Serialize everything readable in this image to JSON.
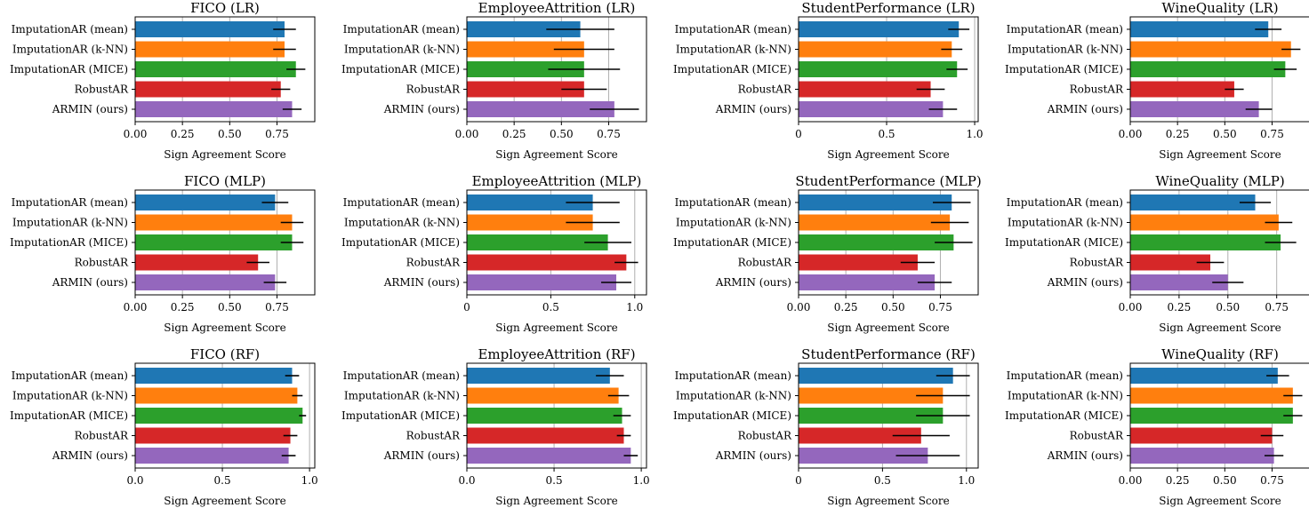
{
  "colors": [
    "#1f77b4",
    "#ff7f0e",
    "#2ca02c",
    "#d62728",
    "#9467bd"
  ],
  "chart_data": [
    {
      "type": "bar",
      "orientation": "horizontal",
      "title": "FICO (LR)",
      "xlabel": "Sign Agreement Score",
      "xticks": [
        0,
        0.25,
        0.5,
        0.75
      ],
      "xtick_labels": [
        "0.00",
        "0.25",
        "0.50",
        "0.75"
      ],
      "xlim": [
        0,
        0.95
      ],
      "grid": true,
      "categories": [
        "ImputationAR (mean)",
        "ImputationAR (k-NN)",
        "ImputationAR (MICE)",
        "RobustAR",
        "ARMIN (ours)"
      ],
      "values": [
        0.79,
        0.79,
        0.85,
        0.77,
        0.83
      ],
      "errors": [
        0.06,
        0.06,
        0.05,
        0.05,
        0.05
      ]
    },
    {
      "type": "bar",
      "orientation": "horizontal",
      "title": "EmployeeAttrition (LR)",
      "xlabel": "Sign Agreement Score",
      "xticks": [
        0,
        0.25,
        0.5,
        0.75
      ],
      "xtick_labels": [
        "0.00",
        "0.25",
        "0.50",
        "0.75"
      ],
      "xlim": [
        0,
        0.95
      ],
      "grid": true,
      "categories": [
        "ImputationAR (mean)",
        "ImputationAR (k-NN)",
        "ImputationAR (MICE)",
        "RobustAR",
        "ARMIN (ours)"
      ],
      "values": [
        0.6,
        0.62,
        0.62,
        0.62,
        0.78
      ],
      "errors": [
        0.18,
        0.16,
        0.19,
        0.12,
        0.13
      ]
    },
    {
      "type": "bar",
      "orientation": "horizontal",
      "title": "StudentPerformance (LR)",
      "xlabel": "Sign Agreement Score",
      "xticks": [
        0,
        0.5,
        1.0
      ],
      "xtick_labels": [
        "0",
        "0.5",
        "1.0"
      ],
      "xlim": [
        0,
        1.02
      ],
      "grid": true,
      "categories": [
        "ImputationAR (mean)",
        "ImputationAR (k-NN)",
        "ImputationAR (MICE)",
        "RobustAR",
        "ARMIN (ours)"
      ],
      "values": [
        0.91,
        0.87,
        0.9,
        0.75,
        0.82
      ],
      "errors": [
        0.06,
        0.06,
        0.06,
        0.08,
        0.08
      ]
    },
    {
      "type": "bar",
      "orientation": "horizontal",
      "title": "WineQuality (LR)",
      "xlabel": "Sign Agreement Score",
      "xticks": [
        0,
        0.25,
        0.5,
        0.75
      ],
      "xtick_labels": [
        "0.00",
        "0.25",
        "0.50",
        "0.75"
      ],
      "xlim": [
        0,
        0.95
      ],
      "grid": true,
      "categories": [
        "ImputationAR (mean)",
        "ImputationAR (k-NN)",
        "ImputationAR (MICE)",
        "RobustAR",
        "ARMIN (ours)"
      ],
      "values": [
        0.73,
        0.85,
        0.82,
        0.55,
        0.68
      ],
      "errors": [
        0.07,
        0.05,
        0.06,
        0.05,
        0.07
      ]
    },
    {
      "type": "bar",
      "orientation": "horizontal",
      "title": "FICO (MLP)",
      "xlabel": "Sign Agreement Score",
      "xticks": [
        0,
        0.25,
        0.5,
        0.75
      ],
      "xtick_labels": [
        "0.00",
        "0.25",
        "0.50",
        "0.75"
      ],
      "xlim": [
        0,
        0.95
      ],
      "grid": true,
      "categories": [
        "ImputationAR (mean)",
        "ImputationAR (k-NN)",
        "ImputationAR (MICE)",
        "RobustAR",
        "ARMIN (ours)"
      ],
      "values": [
        0.74,
        0.83,
        0.83,
        0.65,
        0.74
      ],
      "errors": [
        0.07,
        0.06,
        0.06,
        0.06,
        0.06
      ]
    },
    {
      "type": "bar",
      "orientation": "horizontal",
      "title": "EmployeeAttrition (MLP)",
      "xlabel": "Sign Agreement Score",
      "xticks": [
        0,
        0.5,
        1.0
      ],
      "xtick_labels": [
        "0",
        "0.5",
        "1.0"
      ],
      "xlim": [
        0,
        1.07
      ],
      "grid": true,
      "categories": [
        "ImputationAR (mean)",
        "ImputationAR (k-NN)",
        "ImputationAR (MICE)",
        "RobustAR",
        "ARMIN (ours)"
      ],
      "values": [
        0.75,
        0.75,
        0.84,
        0.95,
        0.89
      ],
      "errors": [
        0.16,
        0.16,
        0.14,
        0.07,
        0.09
      ]
    },
    {
      "type": "bar",
      "orientation": "horizontal",
      "title": "StudentPerformance (MLP)",
      "xlabel": "Sign Agreement Score",
      "xticks": [
        0,
        0.25,
        0.5,
        0.75
      ],
      "xtick_labels": [
        "0.00",
        "0.25",
        "0.50",
        "0.75"
      ],
      "xlim": [
        0,
        0.95
      ],
      "grid": true,
      "categories": [
        "ImputationAR (mean)",
        "ImputationAR (k-NN)",
        "ImputationAR (MICE)",
        "RobustAR",
        "ARMIN (ours)"
      ],
      "values": [
        0.81,
        0.8,
        0.82,
        0.63,
        0.72
      ],
      "errors": [
        0.1,
        0.1,
        0.1,
        0.09,
        0.09
      ]
    },
    {
      "type": "bar",
      "orientation": "horizontal",
      "title": "WineQuality (MLP)",
      "xlabel": "Sign Agreement Score",
      "xticks": [
        0,
        0.25,
        0.5,
        0.75
      ],
      "xtick_labels": [
        "0.00",
        "0.25",
        "0.50",
        "0.75"
      ],
      "xlim": [
        0,
        0.92
      ],
      "grid": true,
      "categories": [
        "ImputationAR (mean)",
        "ImputationAR (k-NN)",
        "ImputationAR (MICE)",
        "RobustAR",
        "ARMIN (ours)"
      ],
      "values": [
        0.64,
        0.76,
        0.77,
        0.41,
        0.5
      ],
      "errors": [
        0.08,
        0.07,
        0.08,
        0.07,
        0.08
      ]
    },
    {
      "type": "bar",
      "orientation": "horizontal",
      "title": "FICO (RF)",
      "xlabel": "Sign Agreement Score",
      "xticks": [
        0,
        0.5,
        1.0
      ],
      "xtick_labels": [
        "0.0",
        "0.5",
        "1.0"
      ],
      "xlim": [
        0,
        1.03
      ],
      "grid": true,
      "categories": [
        "ImputationAR (mean)",
        "ImputationAR (k-NN)",
        "ImputationAR (MICE)",
        "RobustAR",
        "ARMIN (ours)"
      ],
      "values": [
        0.9,
        0.93,
        0.96,
        0.89,
        0.88
      ],
      "errors": [
        0.04,
        0.03,
        0.02,
        0.04,
        0.04
      ]
    },
    {
      "type": "bar",
      "orientation": "horizontal",
      "title": "EmployeeAttrition (RF)",
      "xlabel": "Sign Agreement Score",
      "xticks": [
        0,
        0.5,
        1.0
      ],
      "xtick_labels": [
        "0.0",
        "0.5",
        "1.0"
      ],
      "xlim": [
        0,
        1.03
      ],
      "grid": true,
      "categories": [
        "ImputationAR (mean)",
        "ImputationAR (k-NN)",
        "ImputationAR (MICE)",
        "RobustAR",
        "ARMIN (ours)"
      ],
      "values": [
        0.82,
        0.87,
        0.89,
        0.9,
        0.94
      ],
      "errors": [
        0.08,
        0.06,
        0.05,
        0.04,
        0.04
      ]
    },
    {
      "type": "bar",
      "orientation": "horizontal",
      "title": "StudentPerformance (RF)",
      "xlabel": "Sign Agreement Score",
      "xticks": [
        0,
        0.5,
        1.0
      ],
      "xtick_labels": [
        "0",
        "0.5",
        "1.0"
      ],
      "xlim": [
        0,
        1.07
      ],
      "grid": true,
      "categories": [
        "ImputationAR (mean)",
        "ImputationAR (k-NN)",
        "ImputationAR (MICE)",
        "RobustAR",
        "ARMIN (ours)"
      ],
      "values": [
        0.92,
        0.86,
        0.86,
        0.73,
        0.77
      ],
      "errors": [
        0.1,
        0.16,
        0.16,
        0.17,
        0.19
      ]
    },
    {
      "type": "bar",
      "orientation": "horizontal",
      "title": "WineQuality (RF)",
      "xlabel": "Sign Agreement Score",
      "xticks": [
        0,
        0.25,
        0.5,
        0.75
      ],
      "xtick_labels": [
        "0.00",
        "0.25",
        "0.50",
        "0.75"
      ],
      "xlim": [
        0,
        0.95
      ],
      "grid": true,
      "categories": [
        "ImputationAR (mean)",
        "ImputationAR (k-NN)",
        "ImputationAR (MICE)",
        "RobustAR",
        "ARMIN (ours)"
      ],
      "values": [
        0.78,
        0.86,
        0.86,
        0.75,
        0.76
      ],
      "errors": [
        0.06,
        0.05,
        0.05,
        0.06,
        0.05
      ]
    }
  ]
}
